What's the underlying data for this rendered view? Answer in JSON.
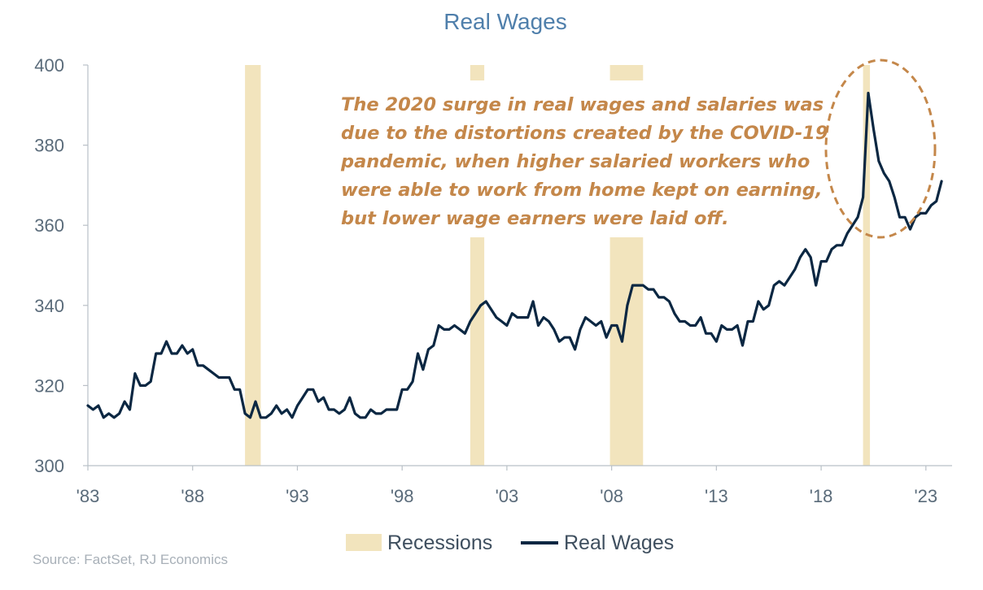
{
  "chart_data": {
    "type": "line",
    "title": "Real Wages",
    "xlabel": "",
    "ylabel": "",
    "ylim": [
      300,
      400
    ],
    "xlim": [
      1983,
      2024.25
    ],
    "yticks": [
      300,
      320,
      340,
      360,
      380,
      400
    ],
    "xticks": [
      {
        "value": 1983,
        "label": "'83"
      },
      {
        "value": 1988,
        "label": "'88"
      },
      {
        "value": 1993,
        "label": "'93"
      },
      {
        "value": 1998,
        "label": "'98"
      },
      {
        "value": 2003,
        "label": "'03"
      },
      {
        "value": 2008,
        "label": "'08"
      },
      {
        "value": 2013,
        "label": "'13"
      },
      {
        "value": 2018,
        "label": "'18"
      },
      {
        "value": 2023,
        "label": "'23"
      }
    ],
    "recessions": [
      {
        "start": 1990.5,
        "end": 1991.25
      },
      {
        "start": 2001.25,
        "end": 2001.92
      },
      {
        "start": 2007.92,
        "end": 2009.5
      },
      {
        "start": 2020.0,
        "end": 2020.33
      }
    ],
    "series": [
      {
        "name": "Real Wages",
        "color": "#0b2742",
        "points": [
          [
            1983.0,
            315
          ],
          [
            1983.25,
            314
          ],
          [
            1983.5,
            315
          ],
          [
            1983.75,
            312
          ],
          [
            1984.0,
            313
          ],
          [
            1984.25,
            312
          ],
          [
            1984.5,
            313
          ],
          [
            1984.75,
            316
          ],
          [
            1985.0,
            314
          ],
          [
            1985.25,
            323
          ],
          [
            1985.5,
            320
          ],
          [
            1985.75,
            320
          ],
          [
            1986.0,
            321
          ],
          [
            1986.25,
            328
          ],
          [
            1986.5,
            328
          ],
          [
            1986.75,
            331
          ],
          [
            1987.0,
            328
          ],
          [
            1987.25,
            328
          ],
          [
            1987.5,
            330
          ],
          [
            1987.75,
            328
          ],
          [
            1988.0,
            329
          ],
          [
            1988.25,
            325
          ],
          [
            1988.5,
            325
          ],
          [
            1988.75,
            324
          ],
          [
            1989.0,
            323
          ],
          [
            1989.25,
            322
          ],
          [
            1989.5,
            322
          ],
          [
            1989.75,
            322
          ],
          [
            1990.0,
            319
          ],
          [
            1990.25,
            319
          ],
          [
            1990.5,
            313
          ],
          [
            1990.75,
            312
          ],
          [
            1991.0,
            316
          ],
          [
            1991.25,
            312
          ],
          [
            1991.5,
            312
          ],
          [
            1991.75,
            313
          ],
          [
            1992.0,
            315
          ],
          [
            1992.25,
            313
          ],
          [
            1992.5,
            314
          ],
          [
            1992.75,
            312
          ],
          [
            1993.0,
            315
          ],
          [
            1993.25,
            317
          ],
          [
            1993.5,
            319
          ],
          [
            1993.75,
            319
          ],
          [
            1994.0,
            316
          ],
          [
            1994.25,
            317
          ],
          [
            1994.5,
            314
          ],
          [
            1994.75,
            314
          ],
          [
            1995.0,
            313
          ],
          [
            1995.25,
            314
          ],
          [
            1995.5,
            317
          ],
          [
            1995.75,
            313
          ],
          [
            1996.0,
            312
          ],
          [
            1996.25,
            312
          ],
          [
            1996.5,
            314
          ],
          [
            1996.75,
            313
          ],
          [
            1997.0,
            313
          ],
          [
            1997.25,
            314
          ],
          [
            1997.5,
            314
          ],
          [
            1997.75,
            314
          ],
          [
            1998.0,
            319
          ],
          [
            1998.25,
            319
          ],
          [
            1998.5,
            321
          ],
          [
            1998.75,
            328
          ],
          [
            1999.0,
            324
          ],
          [
            1999.25,
            329
          ],
          [
            1999.5,
            330
          ],
          [
            1999.75,
            335
          ],
          [
            2000.0,
            334
          ],
          [
            2000.25,
            334
          ],
          [
            2000.5,
            335
          ],
          [
            2000.75,
            334
          ],
          [
            2001.0,
            333
          ],
          [
            2001.25,
            336
          ],
          [
            2001.5,
            338
          ],
          [
            2001.75,
            340
          ],
          [
            2002.0,
            341
          ],
          [
            2002.25,
            339
          ],
          [
            2002.5,
            337
          ],
          [
            2002.75,
            336
          ],
          [
            2003.0,
            335
          ],
          [
            2003.25,
            338
          ],
          [
            2003.5,
            337
          ],
          [
            2003.75,
            337
          ],
          [
            2004.0,
            337
          ],
          [
            2004.25,
            341
          ],
          [
            2004.5,
            335
          ],
          [
            2004.75,
            337
          ],
          [
            2005.0,
            336
          ],
          [
            2005.25,
            334
          ],
          [
            2005.5,
            331
          ],
          [
            2005.75,
            332
          ],
          [
            2006.0,
            332
          ],
          [
            2006.25,
            329
          ],
          [
            2006.5,
            334
          ],
          [
            2006.75,
            337
          ],
          [
            2007.0,
            336
          ],
          [
            2007.25,
            335
          ],
          [
            2007.5,
            336
          ],
          [
            2007.75,
            332
          ],
          [
            2008.0,
            335
          ],
          [
            2008.25,
            335
          ],
          [
            2008.5,
            331
          ],
          [
            2008.75,
            340
          ],
          [
            2009.0,
            345
          ],
          [
            2009.25,
            345
          ],
          [
            2009.5,
            345
          ],
          [
            2009.75,
            344
          ],
          [
            2010.0,
            344
          ],
          [
            2010.25,
            342
          ],
          [
            2010.5,
            342
          ],
          [
            2010.75,
            341
          ],
          [
            2011.0,
            338
          ],
          [
            2011.25,
            336
          ],
          [
            2011.5,
            336
          ],
          [
            2011.75,
            335
          ],
          [
            2012.0,
            335
          ],
          [
            2012.25,
            337
          ],
          [
            2012.5,
            333
          ],
          [
            2012.75,
            333
          ],
          [
            2013.0,
            331
          ],
          [
            2013.25,
            335
          ],
          [
            2013.5,
            334
          ],
          [
            2013.75,
            334
          ],
          [
            2014.0,
            335
          ],
          [
            2014.25,
            330
          ],
          [
            2014.5,
            336
          ],
          [
            2014.75,
            336
          ],
          [
            2015.0,
            341
          ],
          [
            2015.25,
            339
          ],
          [
            2015.5,
            340
          ],
          [
            2015.75,
            345
          ],
          [
            2016.0,
            346
          ],
          [
            2016.25,
            345
          ],
          [
            2016.5,
            347
          ],
          [
            2016.75,
            349
          ],
          [
            2017.0,
            352
          ],
          [
            2017.25,
            354
          ],
          [
            2017.5,
            352
          ],
          [
            2017.75,
            345
          ],
          [
            2018.0,
            351
          ],
          [
            2018.25,
            351
          ],
          [
            2018.5,
            354
          ],
          [
            2018.75,
            355
          ],
          [
            2019.0,
            355
          ],
          [
            2019.25,
            358
          ],
          [
            2019.5,
            360
          ],
          [
            2019.75,
            362
          ],
          [
            2020.0,
            367
          ],
          [
            2020.25,
            393
          ],
          [
            2020.5,
            384
          ],
          [
            2020.75,
            376
          ],
          [
            2021.0,
            373
          ],
          [
            2021.25,
            371
          ],
          [
            2021.5,
            367
          ],
          [
            2021.75,
            362
          ],
          [
            2022.0,
            362
          ],
          [
            2022.25,
            359
          ],
          [
            2022.5,
            362
          ],
          [
            2022.75,
            363
          ],
          [
            2023.0,
            363
          ],
          [
            2023.25,
            365
          ],
          [
            2023.5,
            366
          ],
          [
            2023.75,
            371
          ]
        ]
      }
    ],
    "annotation": {
      "lines": [
        "The 2020 surge in real wages and salaries was",
        "due to the distortions created by the COVID-19",
        "pandemic, when higher salaried workers who",
        "were able to work from home kept on earning,",
        "but lower wage earners were laid off."
      ],
      "color": "#c4874a"
    },
    "highlight_ellipse_color": "#c4874a",
    "recession_color": "#f2e4bd",
    "legend": {
      "placement": "bottom-center",
      "items": [
        {
          "label": "Recessions",
          "kind": "box",
          "color": "#f2e4bd"
        },
        {
          "label": "Real Wages",
          "kind": "line",
          "color": "#0b2742"
        }
      ]
    },
    "grid": false
  },
  "source": "Source: FactSet, RJ Economics"
}
